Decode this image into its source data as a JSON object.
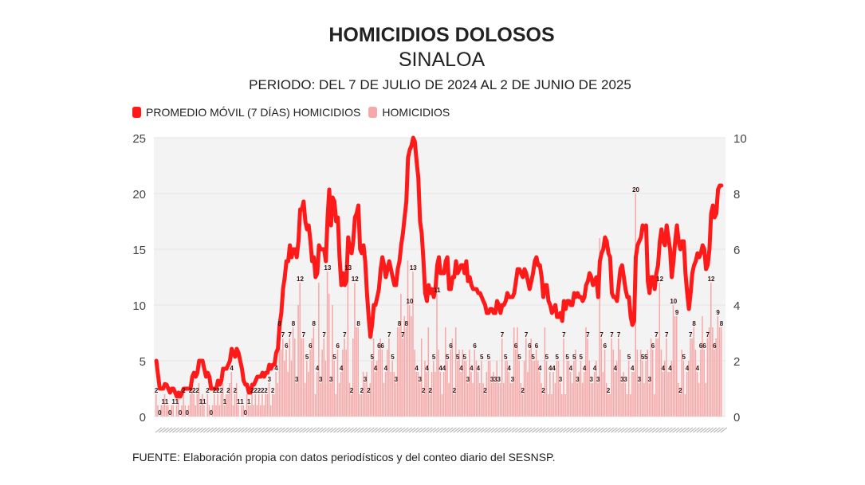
{
  "title": "HOMICIDIOS DOLOSOS",
  "subtitle": "SINALOA",
  "period": "PERIODO: DEL 7 DE JULIO DE 2024 AL 2 DE JUNIO DE 2025",
  "source": "FUENTE: Elaboración propia con datos periodísticos y del conteo diario del SESNSP.",
  "colors": {
    "line": "#ff1a1a",
    "bars": "#f7a9a9",
    "plot_bg": "#f3f3f3"
  },
  "chart_data": {
    "type": "bar+line",
    "title": "HOMICIDIOS DOLOSOS",
    "legend_position": "top-left",
    "grid": true,
    "left_axis": {
      "ylim": [
        0,
        25
      ],
      "ticks": [
        "0",
        "5",
        "10",
        "15",
        "20",
        "25"
      ]
    },
    "right_axis": {
      "ylim": [
        0,
        10
      ],
      "ticks": [
        "0",
        "2",
        "4",
        "6",
        "8",
        "10"
      ]
    },
    "x_start": "2024-07-07",
    "x_end": "2025-06-02",
    "series": [
      {
        "name": "HOMICIDIOS",
        "type": "bar",
        "axis": "left",
        "values": [
          2,
          1,
          0,
          1,
          1,
          2,
          1,
          1,
          0,
          1,
          1,
          0,
          1,
          2,
          0,
          1,
          2,
          1,
          0,
          1,
          2,
          3,
          2,
          1,
          2,
          3,
          1,
          2,
          1,
          0,
          2,
          1,
          0,
          1,
          2,
          1,
          2,
          1,
          2,
          3,
          1,
          2,
          2,
          3,
          4,
          1,
          2,
          3,
          1,
          0,
          1,
          1,
          0,
          2,
          1,
          1,
          2,
          1,
          2,
          1,
          2,
          1,
          2,
          1,
          2,
          2,
          3,
          1,
          2,
          2,
          4,
          3,
          8,
          6,
          7,
          5,
          6,
          4,
          7,
          5,
          8,
          7,
          3,
          10,
          12,
          7,
          7,
          3,
          5,
          4,
          6,
          7,
          8,
          2,
          4,
          12,
          3,
          6,
          7,
          5,
          13,
          11,
          3,
          10,
          5,
          2,
          6,
          3,
          4,
          6,
          7,
          6,
          13,
          3,
          2,
          7,
          12,
          8,
          8,
          2,
          2,
          4,
          3,
          4,
          2,
          3,
          5,
          7,
          4,
          5,
          6,
          7,
          6,
          3,
          4,
          6,
          7,
          4,
          5,
          4,
          3,
          8,
          8,
          11,
          7,
          9,
          8,
          14,
          10,
          9,
          13,
          6,
          4,
          4,
          3,
          7,
          2,
          5,
          4,
          8,
          2,
          4,
          5,
          4,
          11,
          6,
          4,
          2,
          4,
          8,
          5,
          3,
          6,
          7,
          2,
          8,
          5,
          6,
          4,
          6,
          5,
          5,
          3,
          6,
          4,
          3,
          6,
          5,
          4,
          3,
          5,
          3,
          2,
          4,
          5,
          5,
          3,
          4,
          3,
          5,
          3,
          3,
          7,
          3,
          5,
          5,
          4,
          3,
          3,
          8,
          6,
          8,
          5,
          3,
          2,
          5,
          7,
          4,
          6,
          7,
          5,
          5,
          6,
          5,
          4,
          3,
          2,
          8,
          5,
          2,
          4,
          2,
          4,
          3,
          5,
          5,
          3,
          2,
          7,
          2,
          5,
          5,
          4,
          3,
          5,
          6,
          3,
          4,
          5,
          3,
          4,
          8,
          7,
          5,
          3,
          3,
          4,
          5,
          3,
          16,
          7,
          4,
          6,
          3,
          2,
          2,
          7,
          6,
          4,
          5,
          7,
          6,
          3,
          4,
          3,
          2,
          5,
          2,
          4,
          4,
          20,
          6,
          3,
          6,
          5,
          3,
          5,
          6,
          3,
          7,
          6,
          2,
          7,
          7,
          12,
          6,
          4,
          5,
          7,
          4,
          4,
          5,
          10,
          9,
          9,
          3,
          2,
          6,
          5,
          2,
          4,
          5,
          7,
          7,
          8,
          6,
          4,
          3,
          6,
          9,
          6,
          3,
          7,
          8,
          12,
          8,
          6,
          7,
          9,
          8,
          8
        ]
      },
      {
        "name": "PROMEDIO MÓVIL (7 DÍAS) HOMICIDIOS",
        "type": "line",
        "axis": "right",
        "window_days": 7
      }
    ]
  }
}
